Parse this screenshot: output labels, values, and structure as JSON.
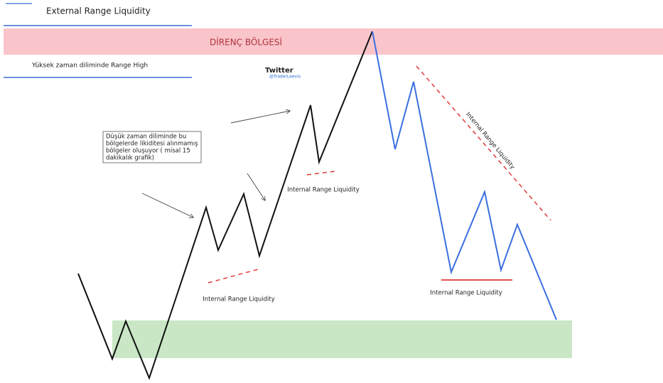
{
  "header": {
    "title": "External Range Liquidity",
    "subtitle": "Yüksek zaman diliminde Range High"
  },
  "zone": {
    "resistance": "DİRENÇ BÖLGESİ"
  },
  "credit": {
    "platform": "Twitter",
    "handle": "@TraderLeevis"
  },
  "note": {
    "lines": [
      "Düşük zaman diliminde bu",
      "bölgelerde likiditesi alınmamış",
      "bölgeler oluşuyor ( misal 15",
      "dakikalık grafik)"
    ]
  },
  "labels": [
    "Internal Range Liquidity",
    "Internal Range Liquidity",
    "Internal Range Liquidity",
    "Internal Range Liquidity"
  ]
}
